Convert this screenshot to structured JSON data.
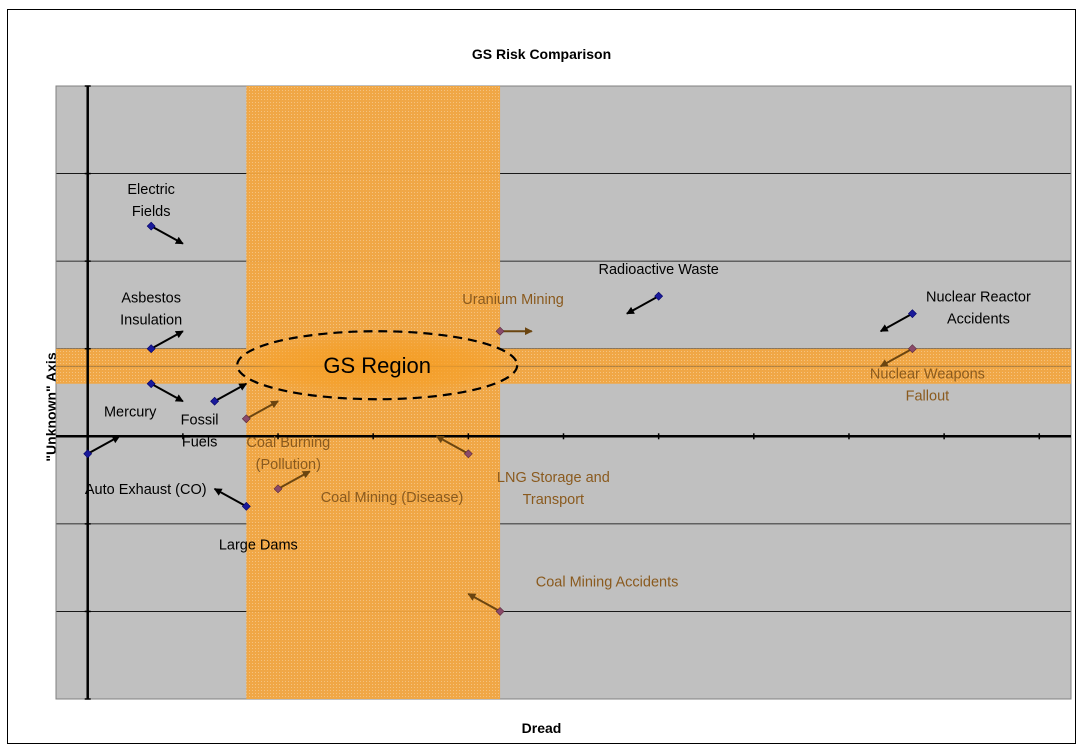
{
  "chart_data": {
    "type": "scatter",
    "title": "GS Risk Comparison",
    "xlabel": "Dread",
    "ylabel": "\"Unknown\" Axis",
    "xlim": [
      -1.0,
      31.0
    ],
    "ylim": [
      -15.0,
      20.0
    ],
    "grid": "horizontal",
    "background_color": "#c0c0c0",
    "region_color": "#f5a623",
    "region_label": "GS Region",
    "gs_region": {
      "x": [
        5,
        13
      ],
      "y": [
        3,
        5
      ]
    },
    "points": [
      {
        "label": [
          "Electric",
          "Fields"
        ],
        "from": [
          2,
          12
        ],
        "to": [
          3,
          11
        ],
        "in_region": false
      },
      {
        "label": [
          "Radioactive Waste"
        ],
        "from": [
          18,
          8
        ],
        "to": [
          17,
          7
        ],
        "in_region": false
      },
      {
        "label": [
          "Asbestos",
          "Insulation"
        ],
        "from": [
          2,
          5
        ],
        "to": [
          3,
          6
        ],
        "in_region": false
      },
      {
        "label": [
          "Uranium Mining"
        ],
        "from": [
          13,
          6
        ],
        "to": [
          14,
          6
        ],
        "in_region": true
      },
      {
        "label": [
          "Nuclear Reactor",
          "Accidents"
        ],
        "from": [
          26,
          7
        ],
        "to": [
          25,
          6
        ],
        "in_region": false
      },
      {
        "label": [
          "Nuclear Weapons",
          "Fallout"
        ],
        "from": [
          26,
          5
        ],
        "to": [
          25,
          4
        ],
        "in_region": true
      },
      {
        "label": [
          "Mercury"
        ],
        "from": [
          2,
          3
        ],
        "to": [
          3,
          2
        ],
        "in_region": false
      },
      {
        "label": [
          "Fossil",
          "Fuels"
        ],
        "from": [
          4,
          2
        ],
        "to": [
          5,
          3
        ],
        "in_region": false
      },
      {
        "label": [
          "Coal Burning",
          "(Pollution)"
        ],
        "from": [
          5,
          1
        ],
        "to": [
          6,
          2
        ],
        "in_region": true
      },
      {
        "label": [
          "LNG Storage and",
          "Transport"
        ],
        "from": [
          12,
          -1
        ],
        "to": [
          11,
          0
        ],
        "in_region": true
      },
      {
        "label": [
          "Auto Exhaust (CO)"
        ],
        "from": [
          0,
          -1
        ],
        "to": [
          1,
          0
        ],
        "in_region": false
      },
      {
        "label": [
          "Large Dams"
        ],
        "from": [
          5,
          -4
        ],
        "to": [
          4,
          -3
        ],
        "in_region": false
      },
      {
        "label": [
          "Coal Mining (Disease)"
        ],
        "from": [
          6,
          -3
        ],
        "to": [
          7,
          -2
        ],
        "in_region": true
      },
      {
        "label": [
          "Coal Mining Accidents"
        ],
        "from": [
          13,
          -10
        ],
        "to": [
          12,
          -9
        ],
        "in_region": true
      }
    ]
  }
}
